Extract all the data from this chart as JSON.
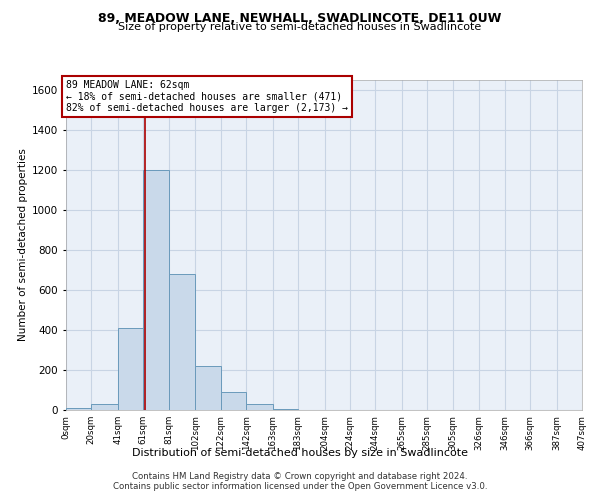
{
  "title1": "89, MEADOW LANE, NEWHALL, SWADLINCOTE, DE11 0UW",
  "title2": "Size of property relative to semi-detached houses in Swadlincote",
  "xlabel": "Distribution of semi-detached houses by size in Swadlincote",
  "ylabel": "Number of semi-detached properties",
  "footer1": "Contains HM Land Registry data © Crown copyright and database right 2024.",
  "footer2": "Contains public sector information licensed under the Open Government Licence v3.0.",
  "annotation_title": "89 MEADOW LANE: 62sqm",
  "annotation_line1": "← 18% of semi-detached houses are smaller (471)",
  "annotation_line2": "82% of semi-detached houses are larger (2,173) →",
  "bar_values": [
    10,
    30,
    410,
    1200,
    680,
    220,
    90,
    30,
    5,
    0,
    0,
    0,
    0,
    0,
    0,
    0,
    0,
    0,
    0,
    0
  ],
  "bar_color": "#c9d9ea",
  "bar_edge_color": "#6a9abb",
  "grid_color": "#c8d4e4",
  "bg_color": "#eaf0f8",
  "vline_color": "#aa0000",
  "vline_x": 62,
  "ylim": [
    0,
    1650
  ],
  "yticks": [
    0,
    200,
    400,
    600,
    800,
    1000,
    1200,
    1400,
    1600
  ],
  "xtick_labels": [
    "0sqm",
    "20sqm",
    "41sqm",
    "61sqm",
    "81sqm",
    "102sqm",
    "122sqm",
    "142sqm",
    "163sqm",
    "183sqm",
    "204sqm",
    "224sqm",
    "244sqm",
    "265sqm",
    "285sqm",
    "305sqm",
    "326sqm",
    "346sqm",
    "366sqm",
    "387sqm",
    "407sqm"
  ],
  "bin_edges": [
    0,
    20,
    41,
    61,
    81,
    102,
    122,
    142,
    163,
    183,
    204,
    224,
    244,
    265,
    285,
    305,
    326,
    346,
    366,
    387,
    407
  ]
}
